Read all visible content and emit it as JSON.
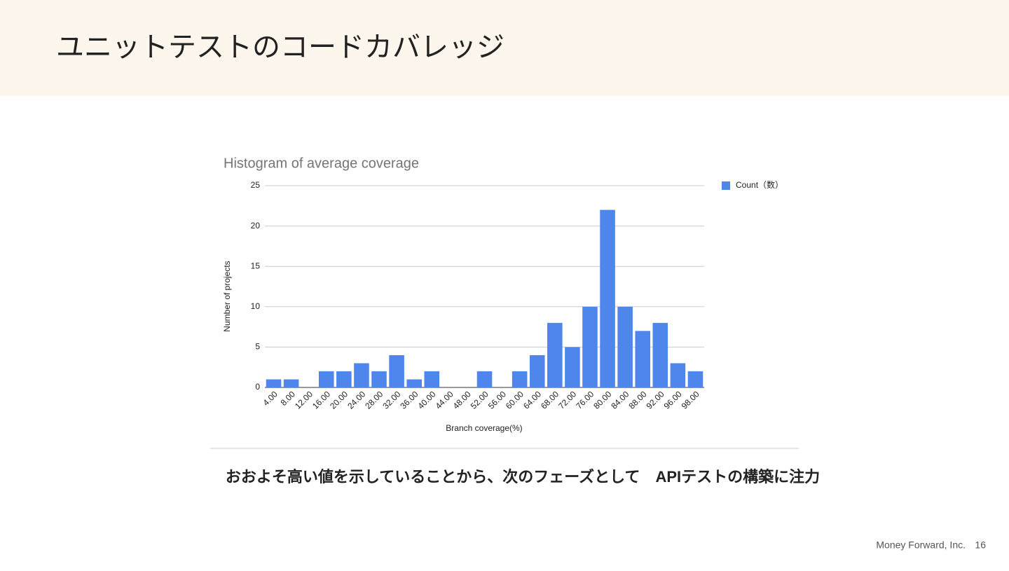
{
  "slide": {
    "title": "ユニットテストのコードカバレッジ",
    "caption": "おおよそ高い値を示していることから、次のフェーズとして　APIテストの構築に注力",
    "footer": "Money Forward, Inc.",
    "page_number": 16
  },
  "chart_data": {
    "type": "bar",
    "title": "Histogram of average coverage",
    "x_label": "Branch coverage(%)",
    "y_label": "Number of projects",
    "categories": [
      "4.00",
      "8.00",
      "12.00",
      "16.00",
      "20.00",
      "24.00",
      "28.00",
      "32.00",
      "36.00",
      "40.00",
      "44.00",
      "48.00",
      "52.00",
      "56.00",
      "60.00",
      "64.00",
      "68.00",
      "72.00",
      "76.00",
      "80.00",
      "84.00",
      "88.00",
      "92.00",
      "96.00",
      "98.00"
    ],
    "series": [
      {
        "name": "Count（数）",
        "color": "#4f86ec",
        "values": [
          1,
          1,
          0,
          2,
          2,
          3,
          2,
          4,
          1,
          2,
          0,
          0,
          2,
          0,
          2,
          4,
          8,
          5,
          10,
          22,
          10,
          7,
          8,
          3,
          2
        ]
      }
    ],
    "ylim": [
      0,
      25
    ],
    "yticks": [
      0,
      5,
      10,
      15,
      20,
      25
    ],
    "grid": true,
    "legend": "top-right"
  }
}
